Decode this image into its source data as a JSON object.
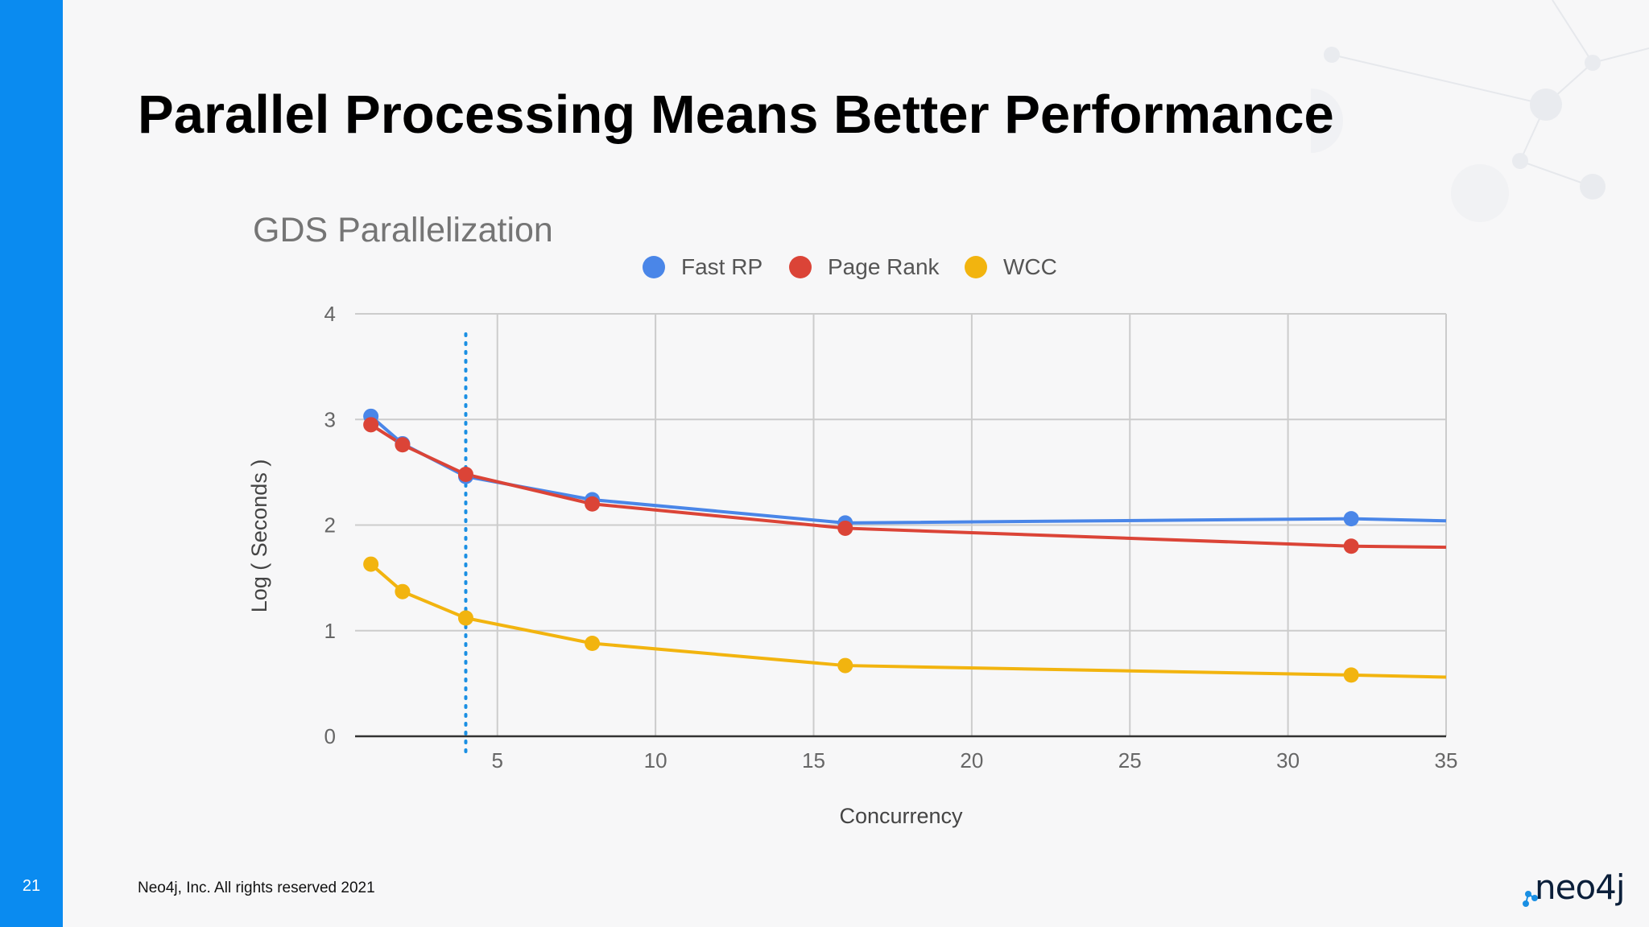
{
  "slide": {
    "title": "Parallel Processing Means Better Performance",
    "page_number": "21",
    "footer": "Neo4j, Inc. All rights reserved 2021",
    "logo_text": "neo4j",
    "accent_color": "#0a8bf0"
  },
  "chart_data": {
    "type": "line",
    "title": "GDS Parallelization",
    "xlabel": "Concurrency",
    "ylabel": "Log ( Seconds )",
    "xlim": [
      0.5,
      35
    ],
    "ylim": [
      0,
      4
    ],
    "x_ticks": [
      5,
      10,
      15,
      20,
      25,
      30,
      35
    ],
    "y_ticks": [
      0,
      1,
      2,
      3,
      4
    ],
    "grid": true,
    "legend_position": "top",
    "reference_line_x": 4,
    "series": [
      {
        "name": "Fast RP",
        "color": "#4a86e8",
        "x": [
          1,
          2,
          4,
          8,
          16,
          32,
          35
        ],
        "y": [
          3.03,
          2.77,
          2.46,
          2.24,
          2.02,
          2.06,
          2.04
        ],
        "markers": [
          1,
          2,
          4,
          8,
          16,
          32
        ]
      },
      {
        "name": "Page Rank",
        "color": "#db4437",
        "x": [
          1,
          2,
          4,
          8,
          16,
          32,
          35
        ],
        "y": [
          2.95,
          2.76,
          2.48,
          2.2,
          1.97,
          1.8,
          1.79
        ],
        "markers": [
          1,
          2,
          4,
          8,
          16,
          32
        ]
      },
      {
        "name": "WCC",
        "color": "#f2b40f",
        "x": [
          1,
          2,
          4,
          8,
          16,
          32,
          35
        ],
        "y": [
          1.63,
          1.37,
          1.12,
          0.88,
          0.67,
          0.58,
          0.56
        ],
        "markers": [
          1,
          2,
          4,
          8,
          16,
          32
        ]
      }
    ]
  }
}
